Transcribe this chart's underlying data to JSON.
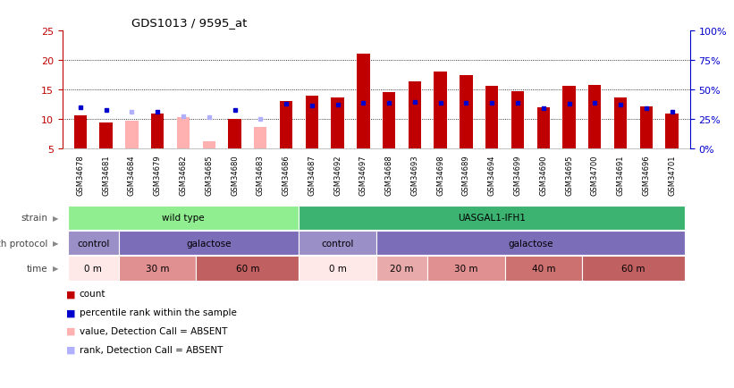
{
  "title": "GDS1013 / 9595_at",
  "samples": [
    "GSM34678",
    "GSM34681",
    "GSM34684",
    "GSM34679",
    "GSM34682",
    "GSM34685",
    "GSM34680",
    "GSM34683",
    "GSM34686",
    "GSM34687",
    "GSM34692",
    "GSM34697",
    "GSM34688",
    "GSM34693",
    "GSM34698",
    "GSM34689",
    "GSM34694",
    "GSM34699",
    "GSM34690",
    "GSM34695",
    "GSM34700",
    "GSM34691",
    "GSM34696",
    "GSM34701"
  ],
  "count_values": [
    10.6,
    9.4,
    9.8,
    11.0,
    10.4,
    6.3,
    10.1,
    8.7,
    13.0,
    13.9,
    13.6,
    21.1,
    14.6,
    16.4,
    18.1,
    17.5,
    15.6,
    14.7,
    12.0,
    15.6,
    15.7,
    13.7,
    12.2,
    11.0
  ],
  "percentile_values": [
    12.0,
    11.5,
    11.2,
    11.3,
    10.5,
    10.3,
    11.6,
    10.0,
    12.6,
    12.3,
    12.4,
    12.7,
    12.8,
    12.9,
    12.8,
    12.8,
    12.7,
    12.7,
    11.8,
    12.6,
    12.7,
    12.4,
    11.8,
    11.3
  ],
  "absent": [
    false,
    false,
    true,
    false,
    true,
    true,
    false,
    true,
    false,
    false,
    false,
    false,
    false,
    false,
    false,
    false,
    false,
    false,
    false,
    false,
    false,
    false,
    false,
    false
  ],
  "count_color": "#c00000",
  "absent_color": "#ffb0b0",
  "percentile_color": "#0000cc",
  "absent_percentile_color": "#b0b0ff",
  "ylim_left": [
    5,
    25
  ],
  "ylim_right": [
    0,
    100
  ],
  "yticks_left": [
    5,
    10,
    15,
    20,
    25
  ],
  "yticks_right": [
    0,
    25,
    50,
    75,
    100
  ],
  "strain_groups": [
    {
      "label": "wild type",
      "start": 0,
      "end": 9,
      "color": "#90ee90"
    },
    {
      "label": "UASGAL1-IFH1",
      "start": 9,
      "end": 24,
      "color": "#3cb371"
    }
  ],
  "protocol_groups": [
    {
      "label": "control",
      "start": 0,
      "end": 2,
      "color": "#9b8fc8"
    },
    {
      "label": "galactose",
      "start": 2,
      "end": 9,
      "color": "#7b6db8"
    },
    {
      "label": "control",
      "start": 9,
      "end": 12,
      "color": "#9b8fc8"
    },
    {
      "label": "galactose",
      "start": 12,
      "end": 24,
      "color": "#7b6db8"
    }
  ],
  "time_groups": [
    {
      "label": "0 m",
      "start": 0,
      "end": 2,
      "color": "#ffe8e8"
    },
    {
      "label": "30 m",
      "start": 2,
      "end": 5,
      "color": "#e09090"
    },
    {
      "label": "60 m",
      "start": 5,
      "end": 9,
      "color": "#c06060"
    },
    {
      "label": "0 m",
      "start": 9,
      "end": 12,
      "color": "#ffe8e8"
    },
    {
      "label": "20 m",
      "start": 12,
      "end": 14,
      "color": "#e8aaaa"
    },
    {
      "label": "30 m",
      "start": 14,
      "end": 17,
      "color": "#e09090"
    },
    {
      "label": "40 m",
      "start": 17,
      "end": 20,
      "color": "#cc7070"
    },
    {
      "label": "60 m",
      "start": 20,
      "end": 24,
      "color": "#c06060"
    }
  ],
  "n_samples": 24,
  "bar_width": 0.5,
  "bar_bottom": 5,
  "grid_lines": [
    10,
    15,
    20
  ],
  "row_labels": [
    "strain",
    "growth protocol",
    "time"
  ],
  "legend_items": [
    {
      "color": "#c00000",
      "label": "count"
    },
    {
      "color": "#0000cc",
      "label": "percentile rank within the sample"
    },
    {
      "color": "#ffb0b0",
      "label": "value, Detection Call = ABSENT"
    },
    {
      "color": "#b0b0ff",
      "label": "rank, Detection Call = ABSENT"
    }
  ]
}
